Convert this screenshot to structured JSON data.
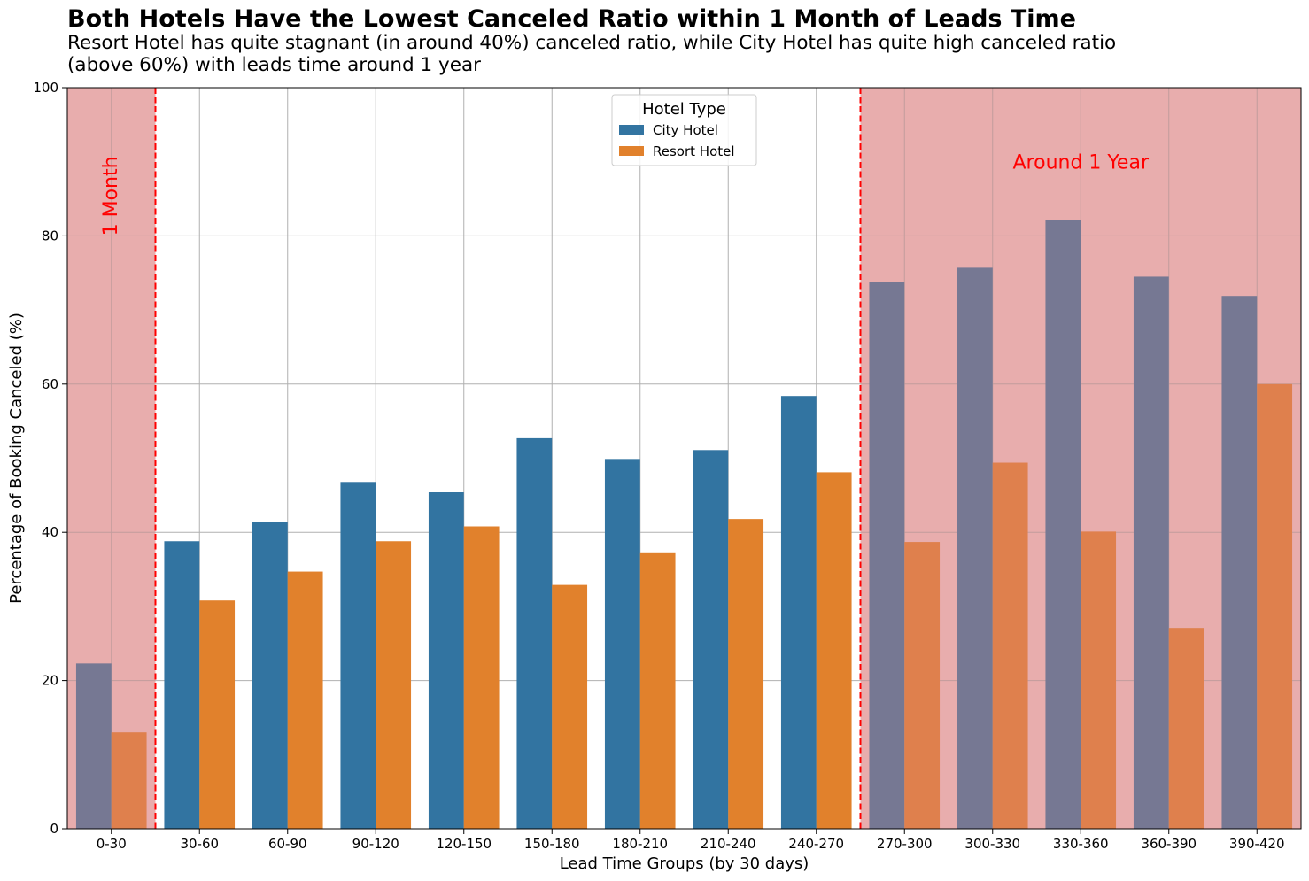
{
  "chart_data": {
    "type": "bar",
    "title": "Both Hotels Have the Lowest Canceled Ratio within 1 Month of Leads Time",
    "subtitle": "Resort Hotel has quite stagnant (in around 40%) canceled ratio, while City Hotel has quite high canceled ratio (above 60%) with leads time around 1 year",
    "xlabel": "Lead Time Groups (by 30 days)",
    "ylabel": "Percentage of Booking Canceled (%)",
    "ylim": [
      0,
      100
    ],
    "yticks": [
      0,
      20,
      40,
      60,
      80,
      100
    ],
    "grid": true,
    "categories": [
      "0-30",
      "30-60",
      "60-90",
      "90-120",
      "120-150",
      "150-180",
      "180-210",
      "210-240",
      "240-270",
      "270-300",
      "300-330",
      "330-360",
      "360-390",
      "390-420"
    ],
    "series": [
      {
        "name": "City Hotel",
        "color": "#3274a1",
        "values": [
          22.3,
          38.8,
          41.4,
          46.8,
          45.4,
          52.7,
          49.9,
          51.1,
          58.4,
          73.8,
          75.7,
          82.1,
          74.5,
          71.9
        ]
      },
      {
        "name": "Resort Hotel",
        "color": "#e1812c",
        "values": [
          13.0,
          30.8,
          34.7,
          38.8,
          40.8,
          32.9,
          37.3,
          41.8,
          48.1,
          38.7,
          49.4,
          40.1,
          27.1,
          60.0
        ]
      }
    ],
    "legend": {
      "title": "Hotel Type",
      "placement": "top-center"
    },
    "highlight_regions": [
      {
        "from_category": "0-30",
        "to_category": "0-30",
        "color": "#dc8080"
      },
      {
        "from_category": "270-300",
        "to_category": "390-420",
        "color": "#dc8080"
      }
    ],
    "reference_lines": [
      {
        "between": [
          "0-30",
          "30-60"
        ],
        "color": "#ff0000",
        "style": "dashed"
      },
      {
        "between": [
          "240-270",
          "270-300"
        ],
        "color": "#ff0000",
        "style": "dashed"
      }
    ],
    "annotations": [
      {
        "text": "1 Month",
        "category": "0-30",
        "y": 80,
        "rotation": 90,
        "color": "#ff0000"
      },
      {
        "text": "Around 1 Year",
        "category": "330-360",
        "y": 90,
        "rotation": 0,
        "color": "#ff0000"
      }
    ]
  }
}
